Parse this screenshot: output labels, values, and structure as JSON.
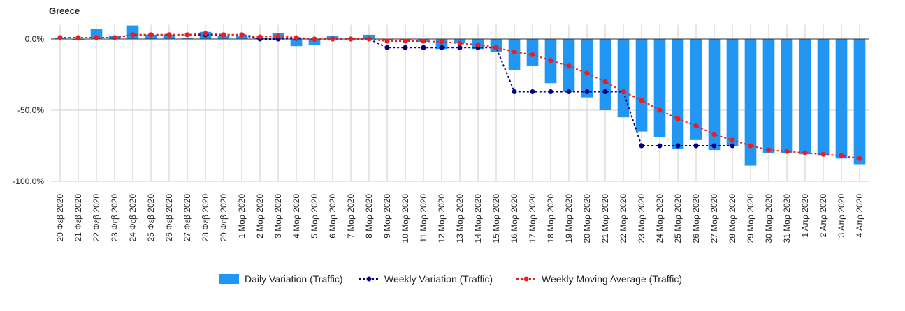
{
  "chart_data": {
    "type": "bar_line",
    "title": "Greece",
    "categories": [
      "20 Φεβ 2020",
      "21 Φεβ 2020",
      "22 Φεβ 2020",
      "23 Φεβ 2020",
      "24 Φεβ 2020",
      "25 Φεβ 2020",
      "26 Φεβ 2020",
      "27 Φεβ 2020",
      "28 Φεβ 2020",
      "29 Φεβ 2020",
      "1 Μαρ 2020",
      "2 Μαρ 2020",
      "3 Μαρ 2020",
      "4 Μαρ 2020",
      "5 Μαρ 2020",
      "6 Μαρ 2020",
      "7 Μαρ 2020",
      "8 Μαρ 2020",
      "9 Μαρ 2020",
      "10 Μαρ 2020",
      "11 Μαρ 2020",
      "12 Μαρ 2020",
      "13 Μαρ 2020",
      "14 Μαρ 2020",
      "15 Μαρ 2020",
      "16 Μαρ 2020",
      "17 Μαρ 2020",
      "18 Μαρ 2020",
      "19 Μαρ 2020",
      "20 Μαρ 2020",
      "21 Μαρ 2020",
      "22 Μαρ 2020",
      "23 Μαρ 2020",
      "24 Μαρ 2020",
      "25 Μαρ 2020",
      "26 Μαρ 2020",
      "27 Μαρ 2020",
      "28 Μαρ 2020",
      "29 Μαρ 2020",
      "30 Μαρ 2020",
      "31 Μαρ 2020",
      "1 Απρ 2020",
      "2 Απρ 2020",
      "3 Απρ 2020",
      "4 Απρ 2020"
    ],
    "series": [
      {
        "name": "Daily Variation (Traffic)",
        "kind": "bar",
        "color": "#2196f3",
        "values": [
          0.5,
          -1,
          7,
          2,
          9.5,
          3,
          3,
          1,
          5,
          2,
          2,
          1,
          4,
          -5,
          -4,
          2,
          0.5,
          3,
          -1,
          -1,
          -2,
          -7,
          -3,
          -7,
          -9,
          -22,
          -19,
          -31,
          -37,
          -41,
          -50,
          -55,
          -65,
          -69,
          -77,
          -71,
          -78,
          -75,
          -89,
          -80,
          -80,
          -81,
          -82,
          -84,
          -88
        ]
      },
      {
        "name": "Weekly Variation (Traffic)",
        "kind": "line",
        "color": "#000080",
        "values": [
          1,
          1,
          1,
          1,
          3,
          3,
          3,
          3,
          3,
          3,
          3,
          0,
          0,
          0.5,
          0,
          0,
          0,
          0,
          -6,
          -6,
          -6,
          -6,
          -6,
          -6,
          -6,
          -37,
          -37,
          -37,
          -37,
          -37,
          -37,
          -37,
          -75,
          -75,
          -75,
          -75,
          -75,
          -75,
          null,
          null,
          null,
          null,
          null,
          null,
          null
        ]
      },
      {
        "name": "Weekly Moving Average (Traffic)",
        "kind": "line",
        "color": "#ee1c1c",
        "values": [
          1,
          1,
          1,
          1,
          3,
          3,
          3,
          3,
          4,
          3,
          3,
          1.5,
          2,
          1,
          0,
          0,
          0,
          0,
          -1.5,
          -1.5,
          -1.5,
          -2,
          -3,
          -4,
          -6,
          -9,
          -11,
          -15,
          -19,
          -24,
          -30,
          -37,
          -43,
          -50,
          -56,
          -61,
          -67,
          -71,
          -75,
          -78,
          -79,
          -80,
          -81,
          -82,
          -84
        ]
      }
    ],
    "ylim": [
      -100,
      10
    ],
    "yticks": [
      {
        "value": 0,
        "label": "0,0%"
      },
      {
        "value": -50,
        "label": "-50,0%"
      },
      {
        "value": -100,
        "label": "-100,0%"
      }
    ],
    "grid": true,
    "legend": "bottom"
  }
}
